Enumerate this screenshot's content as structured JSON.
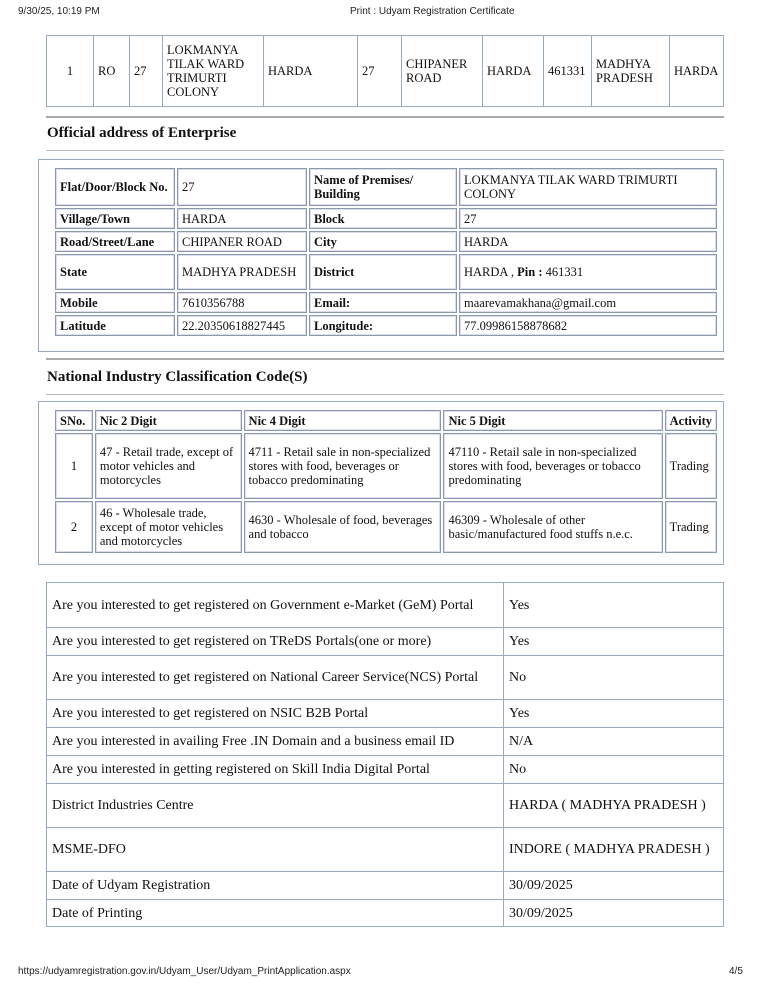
{
  "header": {
    "datetime": "9/30/25, 10:19 PM",
    "title": "Print : Udyam Registration Certificate"
  },
  "unit_row": [
    "1",
    "RO",
    "27",
    "LOKMANYA TILAK WARD TRIMURTI COLONY",
    "HARDA",
    "27",
    "CHIPANER ROAD",
    "HARDA",
    "461331",
    "MADHYA PRADESH",
    "HARDA"
  ],
  "official": {
    "heading": "Official address of Enterprise",
    "rows": [
      [
        "Flat/Door/Block No.",
        "27",
        "Name of Premises/ Building",
        "LOKMANYA TILAK WARD TRIMURTI COLONY"
      ],
      [
        "Village/Town",
        "HARDA",
        "Block",
        "27"
      ],
      [
        "Road/Street/Lane",
        "CHIPANER ROAD",
        "City",
        "HARDA"
      ],
      [
        "State",
        "MADHYA PRADESH",
        "District",
        "HARDA , "
      ],
      [
        "Mobile",
        "7610356788",
        "Email:",
        "maarevamakhana@gmail.com"
      ],
      [
        "Latitude",
        "22.20350618827445",
        "Longitude:",
        "77.09986158878682"
      ]
    ],
    "pin_label": "Pin :",
    "pin": "461331"
  },
  "nic": {
    "heading": "National Industry Classification Code(S)",
    "columns": [
      "SNo.",
      "Nic 2 Digit",
      "Nic 4 Digit",
      "Nic 5 Digit",
      "Activity"
    ],
    "rows": [
      [
        "1",
        "47 - Retail trade, except of motor vehicles and motorcycles",
        "4711 - Retail sale in non-specialized stores with food, beverages or tobacco predominating",
        "47110 - Retail sale in non-specialized stores with food, beverages or tobacco predominating",
        "Trading"
      ],
      [
        "2",
        "46 - Wholesale trade, except of motor vehicles and motorcycles",
        "4630 - Wholesale of food, beverages and tobacco",
        "46309 - Wholesale of other basic/manufactured food stuffs n.e.c.",
        "Trading"
      ]
    ]
  },
  "questions": [
    [
      "Are you interested to get registered on Government e-Market (GeM) Portal",
      "Yes"
    ],
    [
      "Are you interested to get registered on TReDS Portals(one or more)",
      "Yes"
    ],
    [
      "Are you interested to get registered on National Career Service(NCS) Portal",
      "No"
    ],
    [
      "Are you interested to get registered on NSIC B2B Portal",
      "Yes"
    ],
    [
      "Are you interested in availing Free .IN Domain and a business email ID",
      "N/A"
    ],
    [
      "Are you interested in getting registered on Skill India Digital Portal",
      "No"
    ],
    [
      "District Industries Centre",
      "HARDA ( MADHYA PRADESH )"
    ],
    [
      "MSME-DFO",
      "INDORE ( MADHYA PRADESH )"
    ],
    [
      "Date of Udyam Registration",
      "30/09/2025"
    ],
    [
      "Date of Printing",
      "30/09/2025"
    ]
  ],
  "footer": {
    "url": "https://udyamregistration.gov.in/Udyam_User/Udyam_PrintApplication.aspx",
    "page": "4/5"
  }
}
